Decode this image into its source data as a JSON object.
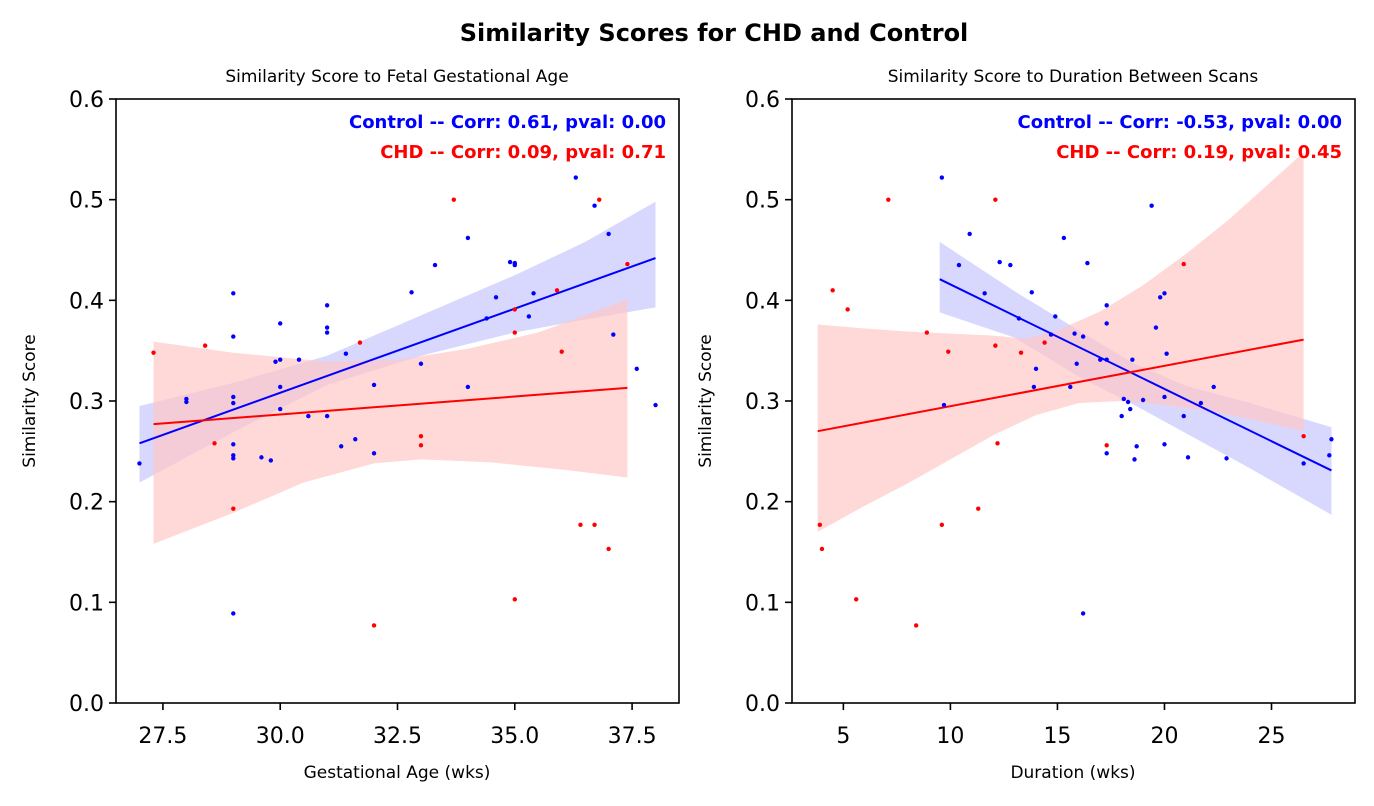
{
  "suptitle": "Similarity Scores for CHD and Control",
  "chart_data": [
    {
      "type": "scatter",
      "title": "Similarity Score to Fetal Gestational Age",
      "xlabel": "Gestational Age (wks)",
      "ylabel": "Similarity Score",
      "xlim": [
        26.5,
        38.5
      ],
      "ylim": [
        0.0,
        0.6
      ],
      "xticks": [
        "27.5",
        "30.0",
        "32.5",
        "35.0",
        "37.5"
      ],
      "yticks": [
        "0.0",
        "0.1",
        "0.2",
        "0.3",
        "0.4",
        "0.5",
        "0.6"
      ],
      "annotations": [
        {
          "text": "Control -- Corr: 0.61, pval: 0.00",
          "color": "#0000ff"
        },
        {
          "text": "CHD -- Corr: 0.09, pval: 0.71",
          "color": "#ff0000"
        }
      ],
      "series": [
        {
          "name": "Control",
          "color": "#0000ff",
          "band_color": "#c8c8ff",
          "points": [
            [
              27.0,
              0.238
            ],
            [
              28.0,
              0.302
            ],
            [
              28.0,
              0.299
            ],
            [
              29.0,
              0.407
            ],
            [
              29.0,
              0.364
            ],
            [
              29.0,
              0.304
            ],
            [
              29.0,
              0.298
            ],
            [
              29.0,
              0.257
            ],
            [
              29.0,
              0.246
            ],
            [
              29.0,
              0.243
            ],
            [
              29.0,
              0.089
            ],
            [
              29.6,
              0.244
            ],
            [
              29.8,
              0.241
            ],
            [
              29.9,
              0.339
            ],
            [
              30.0,
              0.377
            ],
            [
              30.0,
              0.341
            ],
            [
              30.0,
              0.314
            ],
            [
              30.0,
              0.292
            ],
            [
              30.4,
              0.341
            ],
            [
              30.6,
              0.285
            ],
            [
              31.0,
              0.395
            ],
            [
              31.0,
              0.373
            ],
            [
              31.0,
              0.368
            ],
            [
              31.0,
              0.285
            ],
            [
              31.3,
              0.255
            ],
            [
              31.4,
              0.347
            ],
            [
              31.6,
              0.262
            ],
            [
              32.0,
              0.316
            ],
            [
              32.0,
              0.248
            ],
            [
              32.8,
              0.408
            ],
            [
              33.0,
              0.337
            ],
            [
              33.3,
              0.435
            ],
            [
              34.0,
              0.462
            ],
            [
              34.0,
              0.314
            ],
            [
              34.4,
              0.382
            ],
            [
              34.6,
              0.403
            ],
            [
              34.9,
              0.438
            ],
            [
              35.0,
              0.437
            ],
            [
              35.0,
              0.435
            ],
            [
              35.3,
              0.384
            ],
            [
              35.4,
              0.407
            ],
            [
              36.3,
              0.522
            ],
            [
              36.7,
              0.494
            ],
            [
              37.0,
              0.466
            ],
            [
              37.1,
              0.366
            ],
            [
              37.6,
              0.332
            ],
            [
              38.0,
              0.296
            ]
          ],
          "fit": [
            [
              27.0,
              0.258
            ],
            [
              38.0,
              0.442
            ]
          ],
          "band_upper": [
            [
              27.0,
              0.295
            ],
            [
              29.0,
              0.318
            ],
            [
              31.0,
              0.345
            ],
            [
              33.0,
              0.385
            ],
            [
              35.0,
              0.425
            ],
            [
              36.5,
              0.458
            ],
            [
              38.0,
              0.498
            ]
          ],
          "band_lower": [
            [
              27.0,
              0.219
            ],
            [
              29.0,
              0.269
            ],
            [
              31.0,
              0.316
            ],
            [
              33.0,
              0.345
            ],
            [
              35.0,
              0.368
            ],
            [
              36.5,
              0.381
            ],
            [
              38.0,
              0.393
            ]
          ]
        },
        {
          "name": "CHD",
          "color": "#ff0000",
          "band_color": "#ffc8c8",
          "points": [
            [
              27.3,
              0.348
            ],
            [
              28.4,
              0.355
            ],
            [
              28.6,
              0.258
            ],
            [
              29.0,
              0.193
            ],
            [
              31.7,
              0.358
            ],
            [
              32.0,
              0.077
            ],
            [
              33.0,
              0.265
            ],
            [
              33.0,
              0.256
            ],
            [
              33.7,
              0.5
            ],
            [
              35.0,
              0.391
            ],
            [
              35.0,
              0.368
            ],
            [
              35.0,
              0.103
            ],
            [
              35.9,
              0.41
            ],
            [
              36.0,
              0.349
            ],
            [
              36.4,
              0.177
            ],
            [
              36.7,
              0.177
            ],
            [
              36.8,
              0.5
            ],
            [
              37.0,
              0.153
            ],
            [
              37.4,
              0.436
            ]
          ],
          "fit": [
            [
              27.3,
              0.277
            ],
            [
              37.4,
              0.313
            ]
          ],
          "band_upper": [
            [
              27.3,
              0.359
            ],
            [
              29.0,
              0.348
            ],
            [
              31.0,
              0.339
            ],
            [
              32.5,
              0.341
            ],
            [
              34.0,
              0.352
            ],
            [
              35.5,
              0.368
            ],
            [
              37.4,
              0.401
            ]
          ],
          "band_lower": [
            [
              27.3,
              0.158
            ],
            [
              29.0,
              0.189
            ],
            [
              30.5,
              0.219
            ],
            [
              32.0,
              0.238
            ],
            [
              33.0,
              0.242
            ],
            [
              34.5,
              0.239
            ],
            [
              36.0,
              0.232
            ],
            [
              37.4,
              0.224
            ]
          ]
        }
      ]
    },
    {
      "type": "scatter",
      "title": "Similarity Score to Duration Between Scans",
      "xlabel": "Duration (wks)",
      "ylabel": "Similarity Score",
      "xlim": [
        2.6,
        28.9
      ],
      "ylim": [
        0.0,
        0.6
      ],
      "xticks": [
        "5",
        "10",
        "15",
        "20",
        "25"
      ],
      "yticks": [
        "0.0",
        "0.1",
        "0.2",
        "0.3",
        "0.4",
        "0.5",
        "0.6"
      ],
      "annotations": [
        {
          "text": "Control -- Corr: -0.53, pval: 0.00",
          "color": "#0000ff"
        },
        {
          "text": "CHD -- Corr: 0.19, pval: 0.45",
          "color": "#ff0000"
        }
      ],
      "series": [
        {
          "name": "Control",
          "color": "#0000ff",
          "band_color": "#c8c8ff",
          "points": [
            [
              9.6,
              0.522
            ],
            [
              9.7,
              0.296
            ],
            [
              10.4,
              0.435
            ],
            [
              10.9,
              0.466
            ],
            [
              11.6,
              0.407
            ],
            [
              12.3,
              0.438
            ],
            [
              12.8,
              0.435
            ],
            [
              13.2,
              0.382
            ],
            [
              13.8,
              0.408
            ],
            [
              13.9,
              0.314
            ],
            [
              14.0,
              0.332
            ],
            [
              14.7,
              0.366
            ],
            [
              14.9,
              0.384
            ],
            [
              15.3,
              0.462
            ],
            [
              15.6,
              0.314
            ],
            [
              15.8,
              0.367
            ],
            [
              15.9,
              0.337
            ],
            [
              16.2,
              0.089
            ],
            [
              16.2,
              0.364
            ],
            [
              16.4,
              0.437
            ],
            [
              17.0,
              0.341
            ],
            [
              17.3,
              0.395
            ],
            [
              17.3,
              0.377
            ],
            [
              17.3,
              0.341
            ],
            [
              17.3,
              0.248
            ],
            [
              18.0,
              0.285
            ],
            [
              18.1,
              0.302
            ],
            [
              18.3,
              0.299
            ],
            [
              18.4,
              0.292
            ],
            [
              18.5,
              0.341
            ],
            [
              18.6,
              0.242
            ],
            [
              18.7,
              0.255
            ],
            [
              19.0,
              0.301
            ],
            [
              19.4,
              0.494
            ],
            [
              19.6,
              0.373
            ],
            [
              19.8,
              0.403
            ],
            [
              20.0,
              0.407
            ],
            [
              20.0,
              0.304
            ],
            [
              20.0,
              0.257
            ],
            [
              20.1,
              0.347
            ],
            [
              20.9,
              0.285
            ],
            [
              21.1,
              0.244
            ],
            [
              21.7,
              0.298
            ],
            [
              22.3,
              0.314
            ],
            [
              22.9,
              0.243
            ],
            [
              26.5,
              0.238
            ],
            [
              27.7,
              0.246
            ],
            [
              27.8,
              0.262
            ]
          ],
          "fit": [
            [
              9.5,
              0.421
            ],
            [
              27.8,
              0.231
            ]
          ],
          "band_upper": [
            [
              9.5,
              0.458
            ],
            [
              13.0,
              0.409
            ],
            [
              16.0,
              0.37
            ],
            [
              18.5,
              0.338
            ],
            [
              21.0,
              0.315
            ],
            [
              24.0,
              0.298
            ],
            [
              27.8,
              0.274
            ]
          ],
          "band_lower": [
            [
              9.5,
              0.388
            ],
            [
              13.0,
              0.363
            ],
            [
              16.0,
              0.324
            ],
            [
              18.5,
              0.297
            ],
            [
              21.0,
              0.268
            ],
            [
              24.0,
              0.233
            ],
            [
              27.8,
              0.187
            ]
          ]
        },
        {
          "name": "CHD",
          "color": "#ff0000",
          "band_color": "#ffc8c8",
          "points": [
            [
              3.9,
              0.177
            ],
            [
              4.0,
              0.153
            ],
            [
              4.5,
              0.41
            ],
            [
              5.2,
              0.391
            ],
            [
              5.6,
              0.103
            ],
            [
              7.1,
              0.5
            ],
            [
              8.4,
              0.077
            ],
            [
              8.9,
              0.368
            ],
            [
              9.6,
              0.177
            ],
            [
              9.9,
              0.349
            ],
            [
              11.3,
              0.193
            ],
            [
              12.1,
              0.355
            ],
            [
              12.1,
              0.5
            ],
            [
              12.2,
              0.258
            ],
            [
              13.3,
              0.348
            ],
            [
              14.4,
              0.358
            ],
            [
              17.3,
              0.256
            ],
            [
              20.9,
              0.436
            ],
            [
              26.5,
              0.265
            ]
          ],
          "fit": [
            [
              3.8,
              0.27
            ],
            [
              26.5,
              0.361
            ]
          ],
          "band_upper": [
            [
              3.8,
              0.376
            ],
            [
              6.0,
              0.372
            ],
            [
              8.0,
              0.369
            ],
            [
              10.0,
              0.367
            ],
            [
              12.0,
              0.365
            ],
            [
              13.5,
              0.362
            ],
            [
              15.0,
              0.37
            ],
            [
              17.0,
              0.389
            ],
            [
              19.0,
              0.415
            ],
            [
              21.0,
              0.446
            ],
            [
              23.0,
              0.48
            ],
            [
              26.5,
              0.547
            ]
          ],
          "band_lower": [
            [
              3.8,
              0.17
            ],
            [
              6.0,
              0.196
            ],
            [
              8.0,
              0.218
            ],
            [
              10.0,
              0.242
            ],
            [
              12.0,
              0.266
            ],
            [
              14.0,
              0.286
            ],
            [
              16.0,
              0.298
            ],
            [
              18.0,
              0.3
            ],
            [
              20.0,
              0.296
            ],
            [
              22.0,
              0.29
            ],
            [
              24.0,
              0.282
            ],
            [
              26.5,
              0.27
            ]
          ]
        }
      ]
    }
  ]
}
